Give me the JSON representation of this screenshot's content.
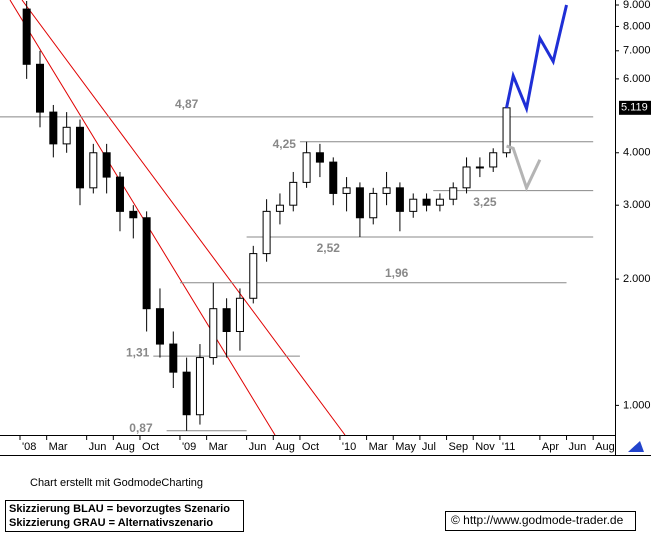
{
  "chart_data": {
    "type": "candlestick",
    "x": [
      "2008-01",
      "2008-02",
      "2008-03",
      "2008-04",
      "2008-05",
      "2008-06",
      "2008-07",
      "2008-08",
      "2008-09",
      "2008-10",
      "2008-11",
      "2008-12",
      "2009-01",
      "2009-02",
      "2009-03",
      "2009-04",
      "2009-05",
      "2009-06",
      "2009-07",
      "2009-08",
      "2009-09",
      "2009-10",
      "2009-11",
      "2009-12",
      "2010-01",
      "2010-02",
      "2010-03",
      "2010-04",
      "2010-05",
      "2010-06",
      "2010-07",
      "2010-08",
      "2010-09",
      "2010-10",
      "2010-11",
      "2010-12",
      "2011-01"
    ],
    "open": [
      8.8,
      6.5,
      5.0,
      4.2,
      4.6,
      3.3,
      4.0,
      3.5,
      2.9,
      2.8,
      1.7,
      1.4,
      1.2,
      0.95,
      1.3,
      1.7,
      1.5,
      1.8,
      2.3,
      2.9,
      3.0,
      3.4,
      4.0,
      3.8,
      3.2,
      3.3,
      2.8,
      3.2,
      3.3,
      2.9,
      3.1,
      3.0,
      3.1,
      3.3,
      3.7,
      3.7,
      4.0
    ],
    "high": [
      9.2,
      7.0,
      5.2,
      5.0,
      4.8,
      4.2,
      4.2,
      3.6,
      3.0,
      2.9,
      1.9,
      1.5,
      1.3,
      1.4,
      1.96,
      1.8,
      1.9,
      2.4,
      3.1,
      3.2,
      3.6,
      4.25,
      4.2,
      3.9,
      3.5,
      3.4,
      3.3,
      3.6,
      3.4,
      3.2,
      3.2,
      3.2,
      3.4,
      3.9,
      3.9,
      4.1,
      5.2
    ],
    "low": [
      6.0,
      4.6,
      3.9,
      4.0,
      3.0,
      3.2,
      3.2,
      2.6,
      2.5,
      1.5,
      1.3,
      1.1,
      0.87,
      0.9,
      1.25,
      1.3,
      1.35,
      1.75,
      2.2,
      2.7,
      2.9,
      3.3,
      3.5,
      3.0,
      2.9,
      2.52,
      2.7,
      3.0,
      2.6,
      2.8,
      2.9,
      2.9,
      3.0,
      3.2,
      3.5,
      3.6,
      3.9
    ],
    "close": [
      6.5,
      5.0,
      4.2,
      4.6,
      3.3,
      4.0,
      3.5,
      2.9,
      2.8,
      1.7,
      1.4,
      1.2,
      0.95,
      1.3,
      1.7,
      1.5,
      1.8,
      2.3,
      2.9,
      3.0,
      3.4,
      4.0,
      3.8,
      3.2,
      3.3,
      2.8,
      3.2,
      3.3,
      2.9,
      3.1,
      3.0,
      3.1,
      3.3,
      3.7,
      3.7,
      4.0,
      5.119
    ],
    "last_price": 5.119,
    "scenarios": [
      {
        "color": "#1f2fd6",
        "x": [
          "2011-01",
          "2011-02",
          "2011-03",
          "2011-04",
          "2011-05",
          "2011-06"
        ],
        "values": [
          5.12,
          6.1,
          5.1,
          7.5,
          6.6,
          9.0
        ]
      },
      {
        "color": "#b4b4b4",
        "x": [
          "2011-01",
          "2011-02",
          "2011-03",
          "2011-04"
        ],
        "values": [
          4.15,
          4.1,
          3.3,
          3.85
        ]
      }
    ],
    "levels": [
      {
        "value": 4.87,
        "label": "4,87",
        "from": "2008-01",
        "to": "2011-08"
      },
      {
        "value": 4.25,
        "label": "4,25",
        "from": "2009-10",
        "to": "2011-08"
      },
      {
        "value": 3.25,
        "label": "3,25",
        "from": "2010-08",
        "to": "2011-08"
      },
      {
        "value": 2.52,
        "label": "2,52",
        "from": "2009-06",
        "to": "2011-08"
      },
      {
        "value": 1.96,
        "label": "1,96",
        "from": "2009-01",
        "to": "2011-06"
      },
      {
        "value": 1.31,
        "label": "1,31",
        "from": "2008-11",
        "to": "2009-10"
      },
      {
        "value": 0.87,
        "label": "0,87",
        "from": "2008-12",
        "to": "2009-06"
      }
    ],
    "log_scale": true,
    "ylim": [
      0.85,
      9.25
    ],
    "yticks": [
      {
        "value": 1,
        "label": "1.000"
      },
      {
        "value": 2,
        "label": "2.000"
      },
      {
        "value": 3,
        "label": "3.000"
      },
      {
        "value": 4,
        "label": "4.000"
      },
      {
        "value": 6,
        "label": "6.000"
      },
      {
        "value": 7,
        "label": "7.000"
      },
      {
        "value": 8,
        "label": "8.000"
      },
      {
        "value": 9,
        "label": "9.000"
      }
    ],
    "xticks": [
      {
        "value": "2008-01",
        "label": "'08"
      },
      {
        "value": "2008-03",
        "label": "Mar"
      },
      {
        "value": "2008-06",
        "label": "Jun"
      },
      {
        "value": "2008-08",
        "label": "Aug"
      },
      {
        "value": "2008-10",
        "label": "Oct"
      },
      {
        "value": "2009-01",
        "label": "'09"
      },
      {
        "value": "2009-03",
        "label": "Mar"
      },
      {
        "value": "2009-06",
        "label": "Jun"
      },
      {
        "value": "2009-08",
        "label": "Aug"
      },
      {
        "value": "2009-10",
        "label": "Oct"
      },
      {
        "value": "2010-01",
        "label": "'10"
      },
      {
        "value": "2010-03",
        "label": "Mar"
      },
      {
        "value": "2010-05",
        "label": "May"
      },
      {
        "value": "2010-07",
        "label": "Jul"
      },
      {
        "value": "2010-09",
        "label": "Sep"
      },
      {
        "value": "2010-11",
        "label": "Nov"
      },
      {
        "value": "2011-01",
        "label": "'11"
      },
      {
        "value": "2011-04",
        "label": "Apr"
      },
      {
        "value": "2011-06",
        "label": "Jun"
      },
      {
        "value": "2011-08",
        "label": "Aug"
      }
    ]
  },
  "footer": {
    "credit": "Chart erstellt mit GodmodeCharting",
    "legend_blue": "Skizzierung BLAU = bevorzugtes Szenario",
    "legend_gray": "Skizzierung GRAU = Alternativszenario",
    "copyright": "© http://www.godmode-trader.de"
  }
}
